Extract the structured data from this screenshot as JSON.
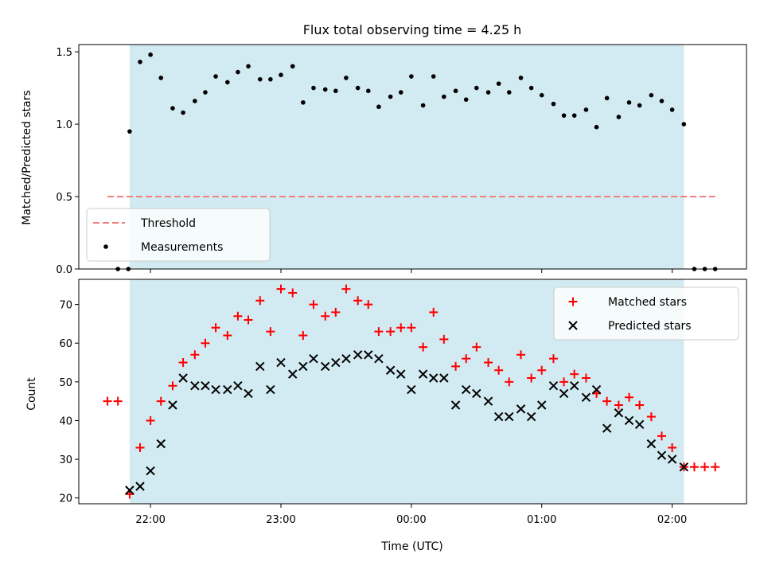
{
  "chart_data": {
    "title": "Flux total observing time = 4.25 h",
    "xlabel": "Time (UTC)",
    "x_tick_labels": [
      "22:00",
      "23:00",
      "00:00",
      "01:00",
      "02:00"
    ],
    "x_tick_values": [
      22.0,
      23.0,
      24.0,
      25.0,
      26.0
    ],
    "xlim": [
      21.45,
      26.57
    ],
    "observing_window": [
      21.84,
      26.09
    ],
    "colors": {
      "observing_window": "#add8e6",
      "threshold": "#f08080",
      "measurements": "#000000",
      "matched": "#ff0000",
      "predicted": "#000000"
    },
    "panels": [
      {
        "type": "scatter",
        "ylabel": "Matched/Predicted stars",
        "ylim": [
          0.0,
          1.55
        ],
        "y_tick_values": [
          0.0,
          0.5,
          1.0,
          1.5
        ],
        "y_tick_labels": [
          "0.0",
          "0.5",
          "1.0",
          "1.5"
        ],
        "legend_position": "lower-left",
        "series": [
          {
            "name": "Threshold",
            "style": "dashed-line",
            "x": [
              21.67,
              26.33
            ],
            "y": [
              0.5,
              0.5
            ]
          },
          {
            "name": "Measurements",
            "style": "dot",
            "x": [
              21.75,
              21.83,
              21.84,
              21.92,
              22.0,
              22.08,
              22.17,
              22.25,
              22.34,
              22.42,
              22.5,
              22.59,
              22.67,
              22.75,
              22.84,
              22.92,
              23.0,
              23.09,
              23.17,
              23.25,
              23.34,
              23.42,
              23.5,
              23.59,
              23.67,
              23.75,
              23.84,
              23.92,
              24.0,
              24.09,
              24.17,
              24.25,
              24.34,
              24.42,
              24.5,
              24.59,
              24.67,
              24.75,
              24.84,
              24.92,
              25.0,
              25.09,
              25.17,
              25.25,
              25.34,
              25.42,
              25.5,
              25.59,
              25.67,
              25.75,
              25.84,
              25.92,
              26.0,
              26.09,
              26.17,
              26.25,
              26.33
            ],
            "y": [
              0.0,
              0.0,
              0.95,
              1.43,
              1.48,
              1.32,
              1.11,
              1.08,
              1.16,
              1.22,
              1.33,
              1.29,
              1.36,
              1.4,
              1.31,
              1.31,
              1.34,
              1.4,
              1.15,
              1.25,
              1.24,
              1.23,
              1.32,
              1.25,
              1.23,
              1.12,
              1.19,
              1.22,
              1.33,
              1.13,
              1.33,
              1.19,
              1.23,
              1.17,
              1.25,
              1.22,
              1.28,
              1.22,
              1.32,
              1.25,
              1.2,
              1.14,
              1.06,
              1.06,
              1.1,
              0.98,
              1.18,
              1.05,
              1.15,
              1.13,
              1.2,
              1.16,
              1.1,
              1.0,
              0.0,
              0.0,
              0.0
            ]
          }
        ]
      },
      {
        "type": "scatter",
        "ylabel": "Count",
        "ylim": [
          18.5,
          76.5
        ],
        "y_tick_values": [
          20,
          30,
          40,
          50,
          60,
          70
        ],
        "y_tick_labels": [
          "20",
          "30",
          "40",
          "50",
          "60",
          "70"
        ],
        "legend_position": "upper-right",
        "series": [
          {
            "name": "Matched stars",
            "style": "plus",
            "x": [
              21.67,
              21.75,
              21.84,
              21.92,
              22.0,
              22.08,
              22.17,
              22.25,
              22.34,
              22.42,
              22.5,
              22.59,
              22.67,
              22.75,
              22.84,
              22.92,
              23.0,
              23.09,
              23.17,
              23.25,
              23.34,
              23.42,
              23.5,
              23.59,
              23.67,
              23.75,
              23.84,
              23.92,
              24.0,
              24.09,
              24.17,
              24.25,
              24.34,
              24.42,
              24.5,
              24.59,
              24.67,
              24.75,
              24.84,
              24.92,
              25.0,
              25.09,
              25.17,
              25.25,
              25.34,
              25.42,
              25.5,
              25.59,
              25.67,
              25.75,
              25.84,
              25.92,
              26.0,
              26.09,
              26.17,
              26.25,
              26.33
            ],
            "y": [
              45,
              45,
              21,
              33,
              40,
              45,
              49,
              55,
              57,
              60,
              64,
              62,
              67,
              66,
              71,
              63,
              74,
              73,
              62,
              70,
              67,
              68,
              74,
              71,
              70,
              63,
              63,
              64,
              64,
              59,
              68,
              61,
              54,
              56,
              59,
              55,
              53,
              50,
              57,
              51,
              53,
              56,
              50,
              52,
              51,
              47,
              45,
              44,
              46,
              44,
              41,
              36,
              33,
              28,
              28,
              28,
              28
            ]
          },
          {
            "name": "Predicted stars",
            "style": "x",
            "x": [
              21.84,
              21.92,
              22.0,
              22.08,
              22.17,
              22.25,
              22.34,
              22.42,
              22.5,
              22.59,
              22.67,
              22.75,
              22.84,
              22.92,
              23.0,
              23.09,
              23.17,
              23.25,
              23.34,
              23.42,
              23.5,
              23.59,
              23.67,
              23.75,
              23.84,
              23.92,
              24.0,
              24.09,
              24.17,
              24.25,
              24.34,
              24.42,
              24.5,
              24.59,
              24.67,
              24.75,
              24.84,
              24.92,
              25.0,
              25.09,
              25.17,
              25.25,
              25.34,
              25.42,
              25.5,
              25.59,
              25.67,
              25.75,
              25.84,
              25.92,
              26.0,
              26.09
            ],
            "y": [
              22,
              23,
              27,
              34,
              44,
              51,
              49,
              49,
              48,
              48,
              49,
              47,
              54,
              48,
              55,
              52,
              54,
              56,
              54,
              55,
              56,
              57,
              57,
              56,
              53,
              52,
              48,
              52,
              51,
              51,
              44,
              48,
              47,
              45,
              41,
              41,
              43,
              41,
              44,
              49,
              47,
              49,
              46,
              48,
              38,
              42,
              40,
              39,
              34,
              31,
              30,
              28
            ]
          }
        ]
      }
    ]
  }
}
